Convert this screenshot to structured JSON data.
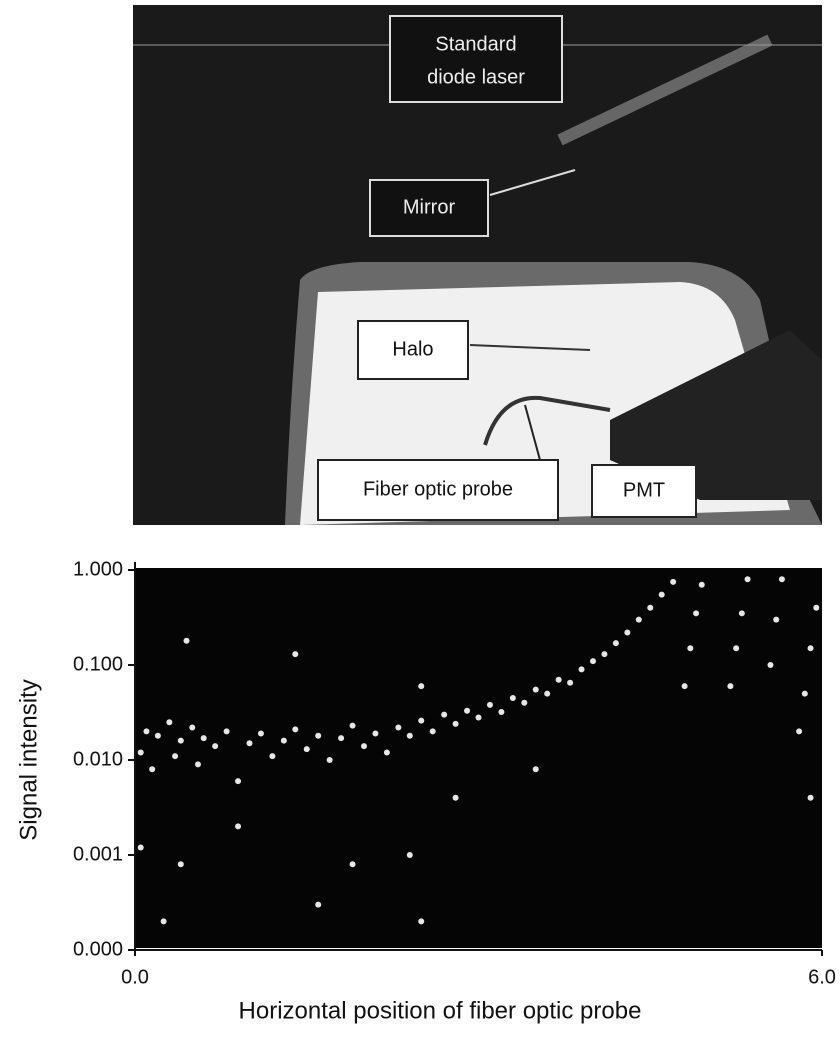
{
  "photo": {
    "labels": [
      [
        "Standard",
        "diode laser"
      ],
      [
        "Mirror"
      ],
      [
        "Halo"
      ],
      [
        "Fiber optic probe"
      ],
      [
        "PMT"
      ]
    ]
  },
  "chart_data": {
    "type": "scatter",
    "color": "#e6e6e6",
    "log_y": true,
    "ylabel": "Signal intensity",
    "xlabel": "Horizontal position of fiber optic probe",
    "xlim": [
      0,
      6
    ],
    "xticks": [
      {
        "value": 0,
        "label": "0.0"
      },
      {
        "value": 6,
        "label": "6.0"
      }
    ],
    "ylim": [
      0.0001,
      1
    ],
    "yticks": [
      {
        "value": 0.0001,
        "label": "0.000"
      },
      0.001,
      {
        "value": 0.01,
        "label": "0.010"
      },
      {
        "value": 0.1,
        "label": "0.100"
      },
      {
        "value": 1,
        "label": "1.000"
      }
    ],
    "x": [
      0.05,
      0.1,
      0.15,
      0.2,
      0.3,
      0.35,
      0.4,
      0.5,
      0.55,
      0.6,
      0.7,
      0.8,
      0.9,
      1.0,
      1.1,
      1.2,
      1.3,
      1.4,
      1.5,
      1.6,
      1.7,
      1.8,
      1.9,
      2.0,
      2.1,
      2.2,
      2.3,
      2.4,
      2.5,
      2.6,
      2.7,
      2.8,
      2.9,
      3.0,
      3.1,
      3.2,
      3.3,
      3.4,
      3.5,
      3.6,
      3.7,
      3.8,
      3.9,
      4.0,
      4.1,
      4.2,
      4.3,
      4.4,
      4.5,
      4.6,
      4.7,
      0.45,
      1.4,
      0.05,
      0.25,
      0.4,
      1.6,
      2.4,
      2.5,
      1.9,
      0.9,
      2.8,
      3.5,
      2.5,
      4.8,
      4.85,
      4.9,
      4.95,
      5.2,
      5.25,
      5.3,
      5.35,
      5.55,
      5.6,
      5.65,
      5.8,
      5.85,
      5.9,
      5.95,
      5.9
    ],
    "values": [
      0.012,
      0.02,
      0.008,
      0.018,
      0.025,
      0.011,
      0.016,
      0.022,
      0.009,
      0.017,
      0.014,
      0.02,
      0.006,
      0.015,
      0.019,
      0.011,
      0.016,
      0.021,
      0.013,
      0.018,
      0.01,
      0.017,
      0.023,
      0.014,
      0.019,
      0.012,
      0.022,
      0.018,
      0.026,
      0.02,
      0.03,
      0.024,
      0.033,
      0.028,
      0.038,
      0.032,
      0.045,
      0.04,
      0.055,
      0.05,
      0.07,
      0.065,
      0.09,
      0.11,
      0.13,
      0.17,
      0.22,
      0.3,
      0.4,
      0.55,
      0.75,
      0.18,
      0.13,
      0.0012,
      0.0002,
      0.0008,
      0.0003,
      0.001,
      0.0002,
      0.0008,
      0.002,
      0.004,
      0.008,
      0.06,
      0.06,
      0.15,
      0.35,
      0.7,
      0.06,
      0.15,
      0.35,
      0.8,
      0.1,
      0.3,
      0.8,
      0.02,
      0.05,
      0.15,
      0.4,
      0.004
    ]
  }
}
